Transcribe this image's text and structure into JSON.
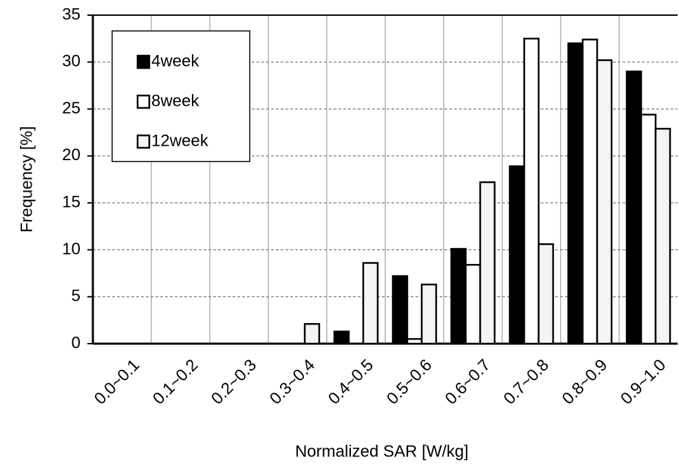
{
  "chart_data": {
    "type": "bar",
    "xlabel": "Normalized SAR [W/kg]",
    "ylabel": "Frequency [%]",
    "categories": [
      "0.0~0.1",
      "0.1~0.2",
      "0.2~0.3",
      "0.3~0.4",
      "0.4~0.5",
      "0.5~0.6",
      "0.6~0.7",
      "0.7~0.8",
      "0.8~0.9",
      "0.9~1.0"
    ],
    "series": [
      {
        "name": "4week",
        "color": "#000000",
        "values": [
          0,
          0,
          0,
          0,
          1.3,
          7.2,
          10.1,
          18.9,
          32.0,
          29.0
        ]
      },
      {
        "name": "8week",
        "color": "#ffffff",
        "values": [
          0,
          0,
          0,
          0,
          0,
          0.5,
          8.4,
          32.5,
          32.4,
          24.4
        ]
      },
      {
        "name": "12week",
        "color": "#f4f4f4",
        "values": [
          0,
          0,
          0,
          2.1,
          8.6,
          6.3,
          17.2,
          10.6,
          30.2,
          22.9
        ]
      }
    ],
    "ylim": [
      0,
      35
    ],
    "yticks": [
      0,
      5,
      10,
      15,
      20,
      25,
      30,
      35
    ],
    "grid": true,
    "legend": "upper left"
  }
}
